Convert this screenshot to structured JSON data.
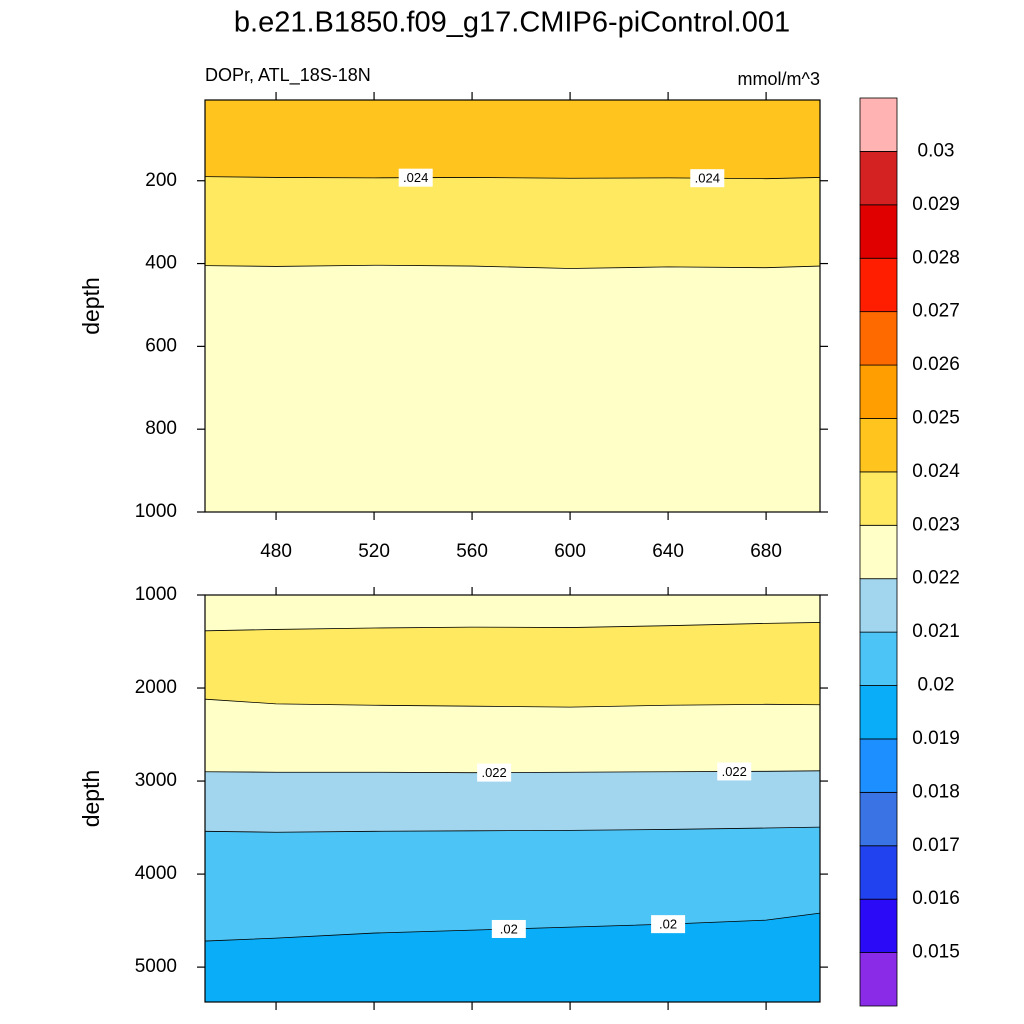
{
  "chart_data": {
    "type": "contour",
    "title": "b.e21.B1850.f09_g17.CMIP6-piControl.001",
    "subtitle": "DOPr, ATL_18S-18N",
    "units": "mmol/m^3",
    "xlim": [
      451,
      702
    ],
    "xticks": [
      480,
      520,
      560,
      600,
      640,
      680
    ],
    "colorbar": {
      "levels": [
        0.015,
        0.016,
        0.017,
        0.018,
        0.019,
        0.02,
        0.021,
        0.022,
        0.023,
        0.024,
        0.025,
        0.026,
        0.027,
        0.028,
        0.029,
        0.03
      ],
      "colors": [
        "#8a2be8",
        "#2a0af7",
        "#2142ef",
        "#3a74e4",
        "#1e8fff",
        "#0aaef8",
        "#4cc4f5",
        "#a2d6ee",
        "#ffffc8",
        "#fee961",
        "#ffc51e",
        "#ff9e00",
        "#ff6a00",
        "#ff1e00",
        "#e00000",
        "#d42222",
        "#ffb3b3"
      ]
    },
    "panels": [
      {
        "ylabel": "depth",
        "ylim": [
          5,
          1000
        ],
        "yticks": [
          200,
          400,
          600,
          800,
          1000
        ],
        "x": [
          451,
          480,
          520,
          560,
          600,
          640,
          680,
          702
        ],
        "regions": [
          0.024,
          0.023,
          0.022
        ],
        "contours": [
          {
            "level": 0.024,
            "label": ".024",
            "label_x": [
              537,
              656
            ],
            "depth": [
              190,
              192,
              193,
              192,
              194,
              193,
              195,
              192
            ]
          },
          {
            "level": 0.023,
            "depth": [
              405,
              407,
              404,
              406,
              412,
              408,
              410,
              406
            ]
          }
        ]
      },
      {
        "ylabel": "depth",
        "ylim": [
          1000,
          5375
        ],
        "yticks": [
          1000,
          2000,
          3000,
          4000,
          5000
        ],
        "x": [
          451,
          480,
          520,
          560,
          600,
          640,
          680,
          702
        ],
        "regions": [
          0.022,
          0.023,
          0.022,
          0.021,
          0.02,
          0.019
        ],
        "contours": [
          {
            "level": 0.023,
            "depth": [
              1385,
              1370,
              1355,
              1345,
              1350,
              1330,
              1305,
              1295
            ]
          },
          {
            "level": 0.023,
            "depth": [
              2120,
              2170,
              2185,
              2195,
              2205,
              2185,
              2175,
              2180
            ]
          },
          {
            "level": 0.022,
            "label": ".022",
            "label_x": [
              569,
              667
            ],
            "depth": [
              2900,
              2905,
              2905,
              2910,
              2905,
              2900,
              2895,
              2890
            ]
          },
          {
            "level": 0.021,
            "depth": [
              3540,
              3550,
              3540,
              3535,
              3530,
              3520,
              3505,
              3495
            ]
          },
          {
            "level": 0.02,
            "label": ".02",
            "label_x": [
              575,
              640
            ],
            "depth": [
              4720,
              4688,
              4634,
              4602,
              4570,
              4538,
              4495,
              4420
            ]
          }
        ]
      }
    ]
  }
}
